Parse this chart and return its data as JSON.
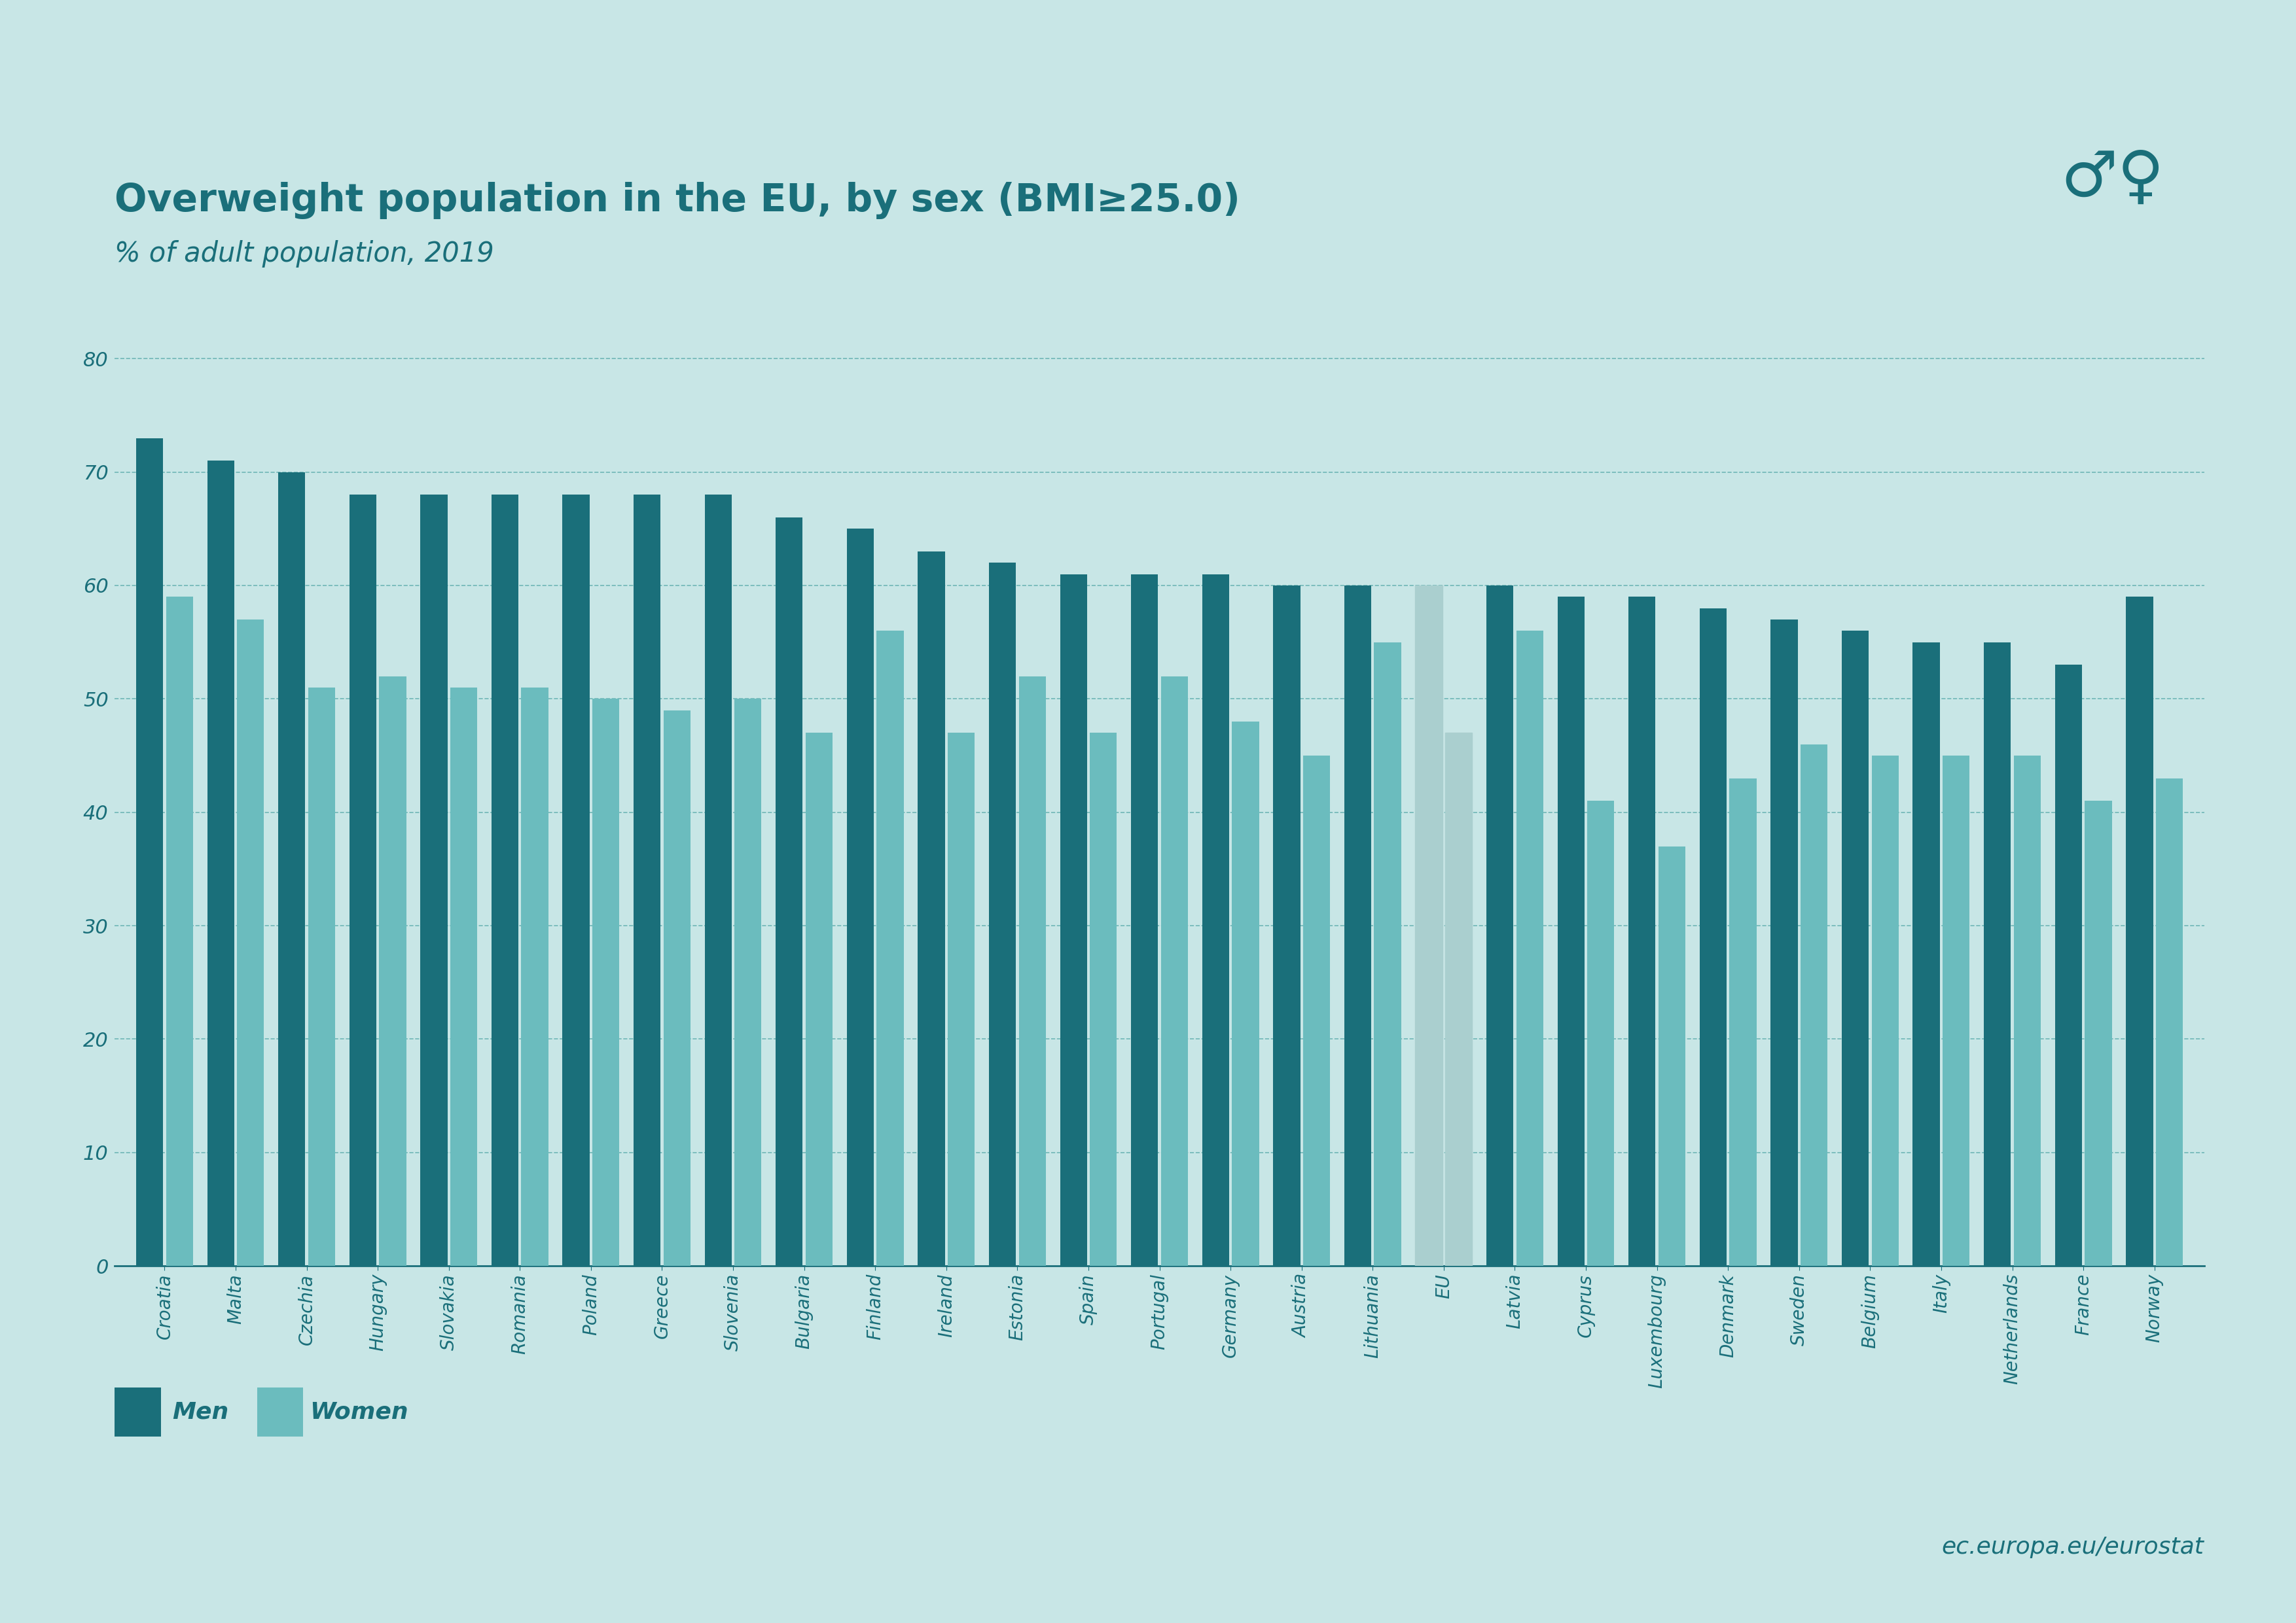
{
  "title": "Overweight population in the EU, by sex (BMI≥25.0)",
  "subtitle": "% of adult population, 2019",
  "background_color": "#c8e6e6",
  "bar_color_men": "#1a6f7a",
  "bar_color_women": "#6bbcbe",
  "bar_color_eu_men": "#aacfcf",
  "bar_color_eu_women": "#aacfcf",
  "axis_color": "#1a6f7a",
  "grid_color": "#5aabab",
  "categories": [
    "Croatia",
    "Malta",
    "Czechia",
    "Hungary",
    "Slovakia",
    "Romania",
    "Poland",
    "Greece",
    "Slovenia",
    "Bulgaria",
    "Finland",
    "Ireland",
    "Estonia",
    "Spain",
    "Portugal",
    "Germany",
    "Austria",
    "Lithuania",
    "EU",
    "Latvia",
    "Cyprus",
    "Luxembourg",
    "Denmark",
    "Sweden",
    "Belgium",
    "Italy",
    "Netherlands",
    "France",
    "Norway"
  ],
  "men": [
    73,
    71,
    70,
    68,
    68,
    68,
    68,
    68,
    68,
    66,
    65,
    63,
    62,
    61,
    61,
    61,
    60,
    60,
    60,
    60,
    59,
    59,
    58,
    57,
    56,
    55,
    55,
    53,
    59
  ],
  "women": [
    59,
    57,
    51,
    52,
    51,
    51,
    50,
    49,
    50,
    47,
    56,
    47,
    52,
    47,
    52,
    48,
    45,
    55,
    47,
    56,
    41,
    37,
    43,
    46,
    45,
    45,
    45,
    41,
    43
  ],
  "eu_index": 18,
  "ylim": [
    0,
    83
  ],
  "yticks": [
    0,
    10,
    20,
    30,
    40,
    50,
    60,
    70,
    80
  ],
  "legend_men": "Men",
  "legend_women": "Women",
  "footer_text": "ec.europa.eu/eurostat",
  "title_color": "#1a6f7a",
  "subtitle_color": "#1a6f7a",
  "tick_color": "#1a6f7a"
}
